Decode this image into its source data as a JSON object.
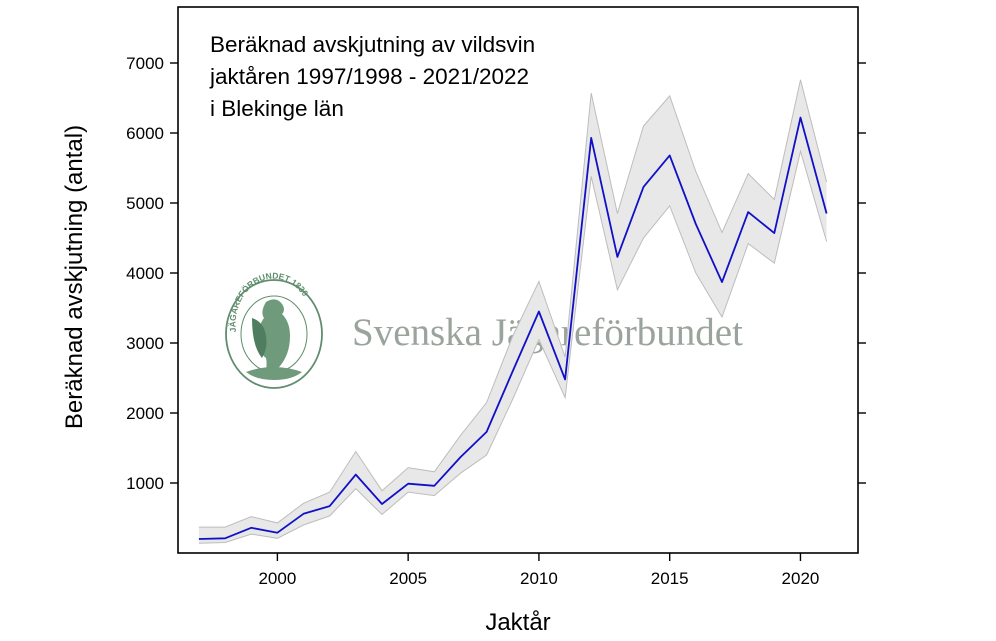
{
  "chart_data": {
    "type": "line",
    "title_lines": [
      "Beräknad avskjutning av vildsvin",
      "jaktåren 1997/1998 - 2021/2022",
      "i Blekinge län"
    ],
    "xlabel": "Jaktår",
    "ylabel": "Beräknad avskjutning (antal)",
    "xlim": [
      1996.2,
      2022.2
    ],
    "ylim": [
      0,
      7800
    ],
    "x_ticks": [
      2000,
      2005,
      2010,
      2015,
      2020
    ],
    "y_ticks": [
      1000,
      2000,
      3000,
      4000,
      5000,
      6000,
      7000
    ],
    "grid": false,
    "series": [
      {
        "line_color": "#1010c8",
        "band_color": "#e8e8e8",
        "band_edge_color": "#bdbdbd",
        "x": [
          1997,
          1998,
          1999,
          2000,
          2001,
          2002,
          2003,
          2004,
          2005,
          2006,
          2007,
          2008,
          2009,
          2010,
          2011,
          2012,
          2013,
          2014,
          2015,
          2016,
          2017,
          2018,
          2019,
          2020,
          2021
        ],
        "values": [
          200,
          210,
          360,
          290,
          560,
          670,
          1120,
          700,
          990,
          960,
          1370,
          1730,
          2600,
          3450,
          2480,
          5930,
          4230,
          5230,
          5680,
          4700,
          3870,
          4870,
          4570,
          6220,
          4850
        ],
        "lower": [
          140,
          150,
          270,
          210,
          400,
          530,
          920,
          550,
          870,
          820,
          1140,
          1400,
          2200,
          3050,
          2220,
          5380,
          3760,
          4500,
          4960,
          4000,
          3370,
          4420,
          4140,
          5740,
          4450
        ],
        "upper": [
          370,
          370,
          520,
          430,
          710,
          870,
          1450,
          890,
          1220,
          1160,
          1680,
          2150,
          3100,
          3880,
          2800,
          6570,
          4850,
          6100,
          6530,
          5450,
          4580,
          5420,
          5050,
          6760,
          5300
        ]
      }
    ]
  },
  "watermark": {
    "wordmark": "Svenska Jägareförbundet",
    "seal_text": "JÄGAREFÖRBUNDET 1830",
    "seal_icon": "eagle-seal-icon",
    "color": "#9aa39c",
    "seal_color": "#5f8d6e"
  }
}
